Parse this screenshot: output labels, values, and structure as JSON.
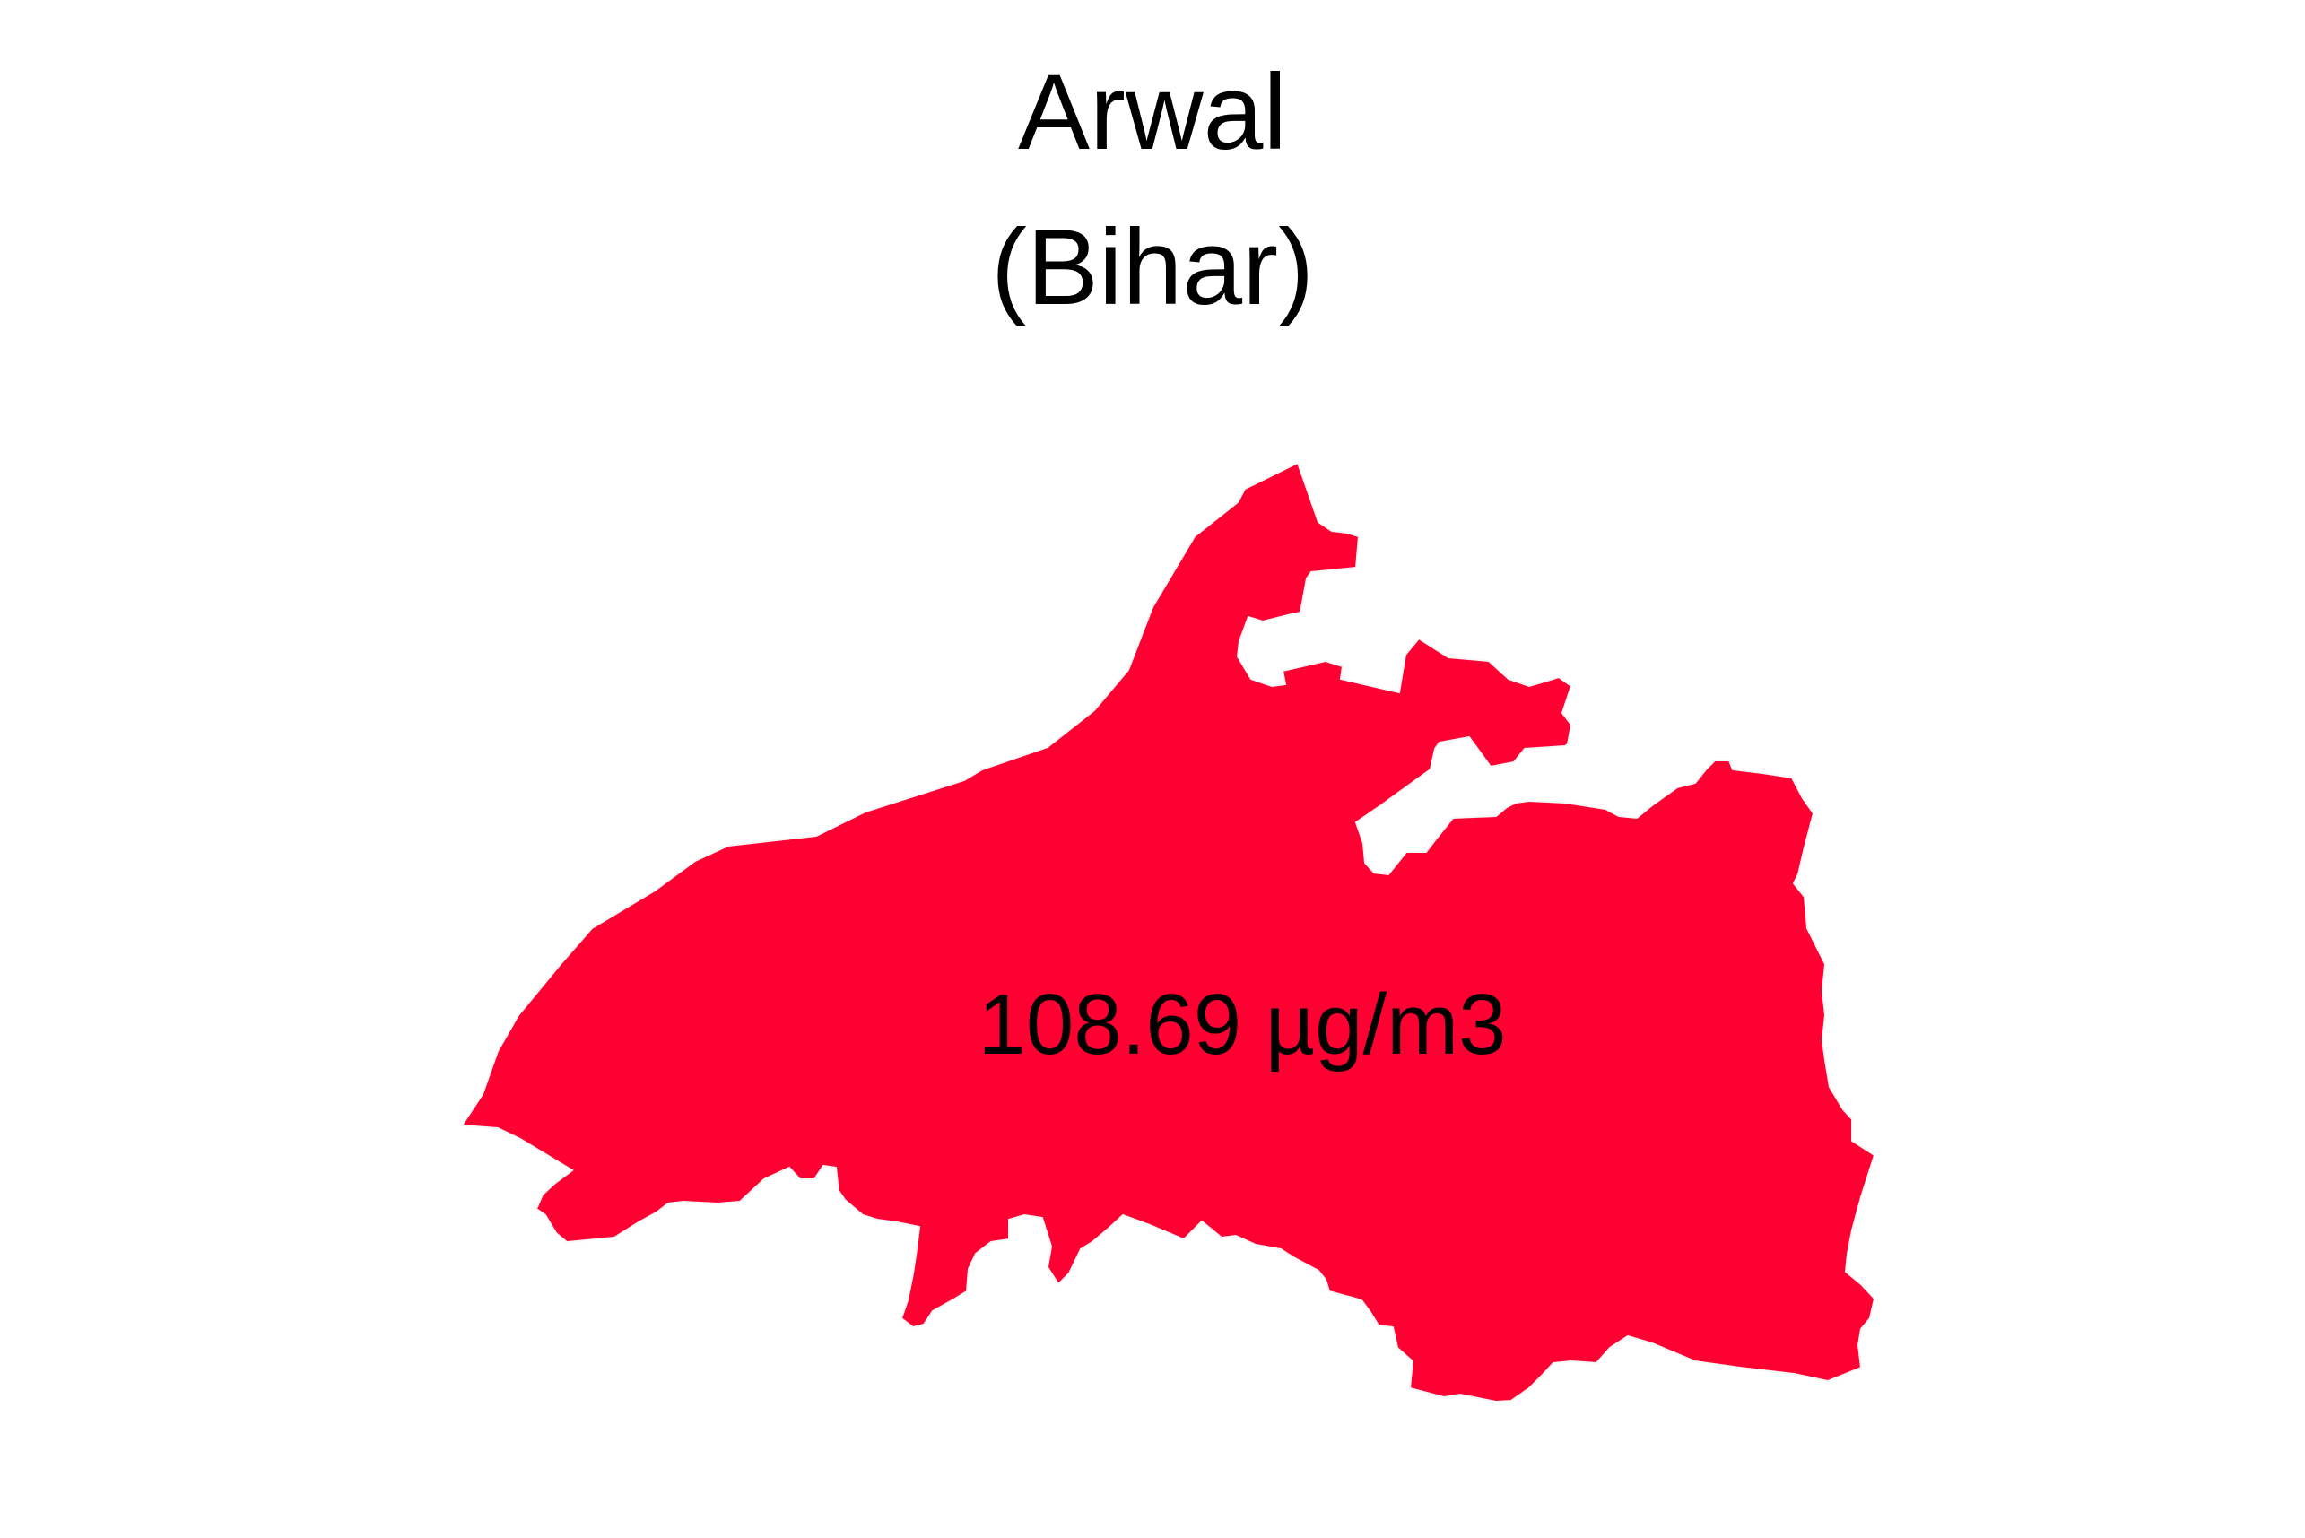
{
  "title": {
    "district": "Arwal",
    "state": "(Bihar)"
  },
  "region": {
    "value_label": "108.69 µg/m3",
    "fill_color": "#FF0033"
  }
}
